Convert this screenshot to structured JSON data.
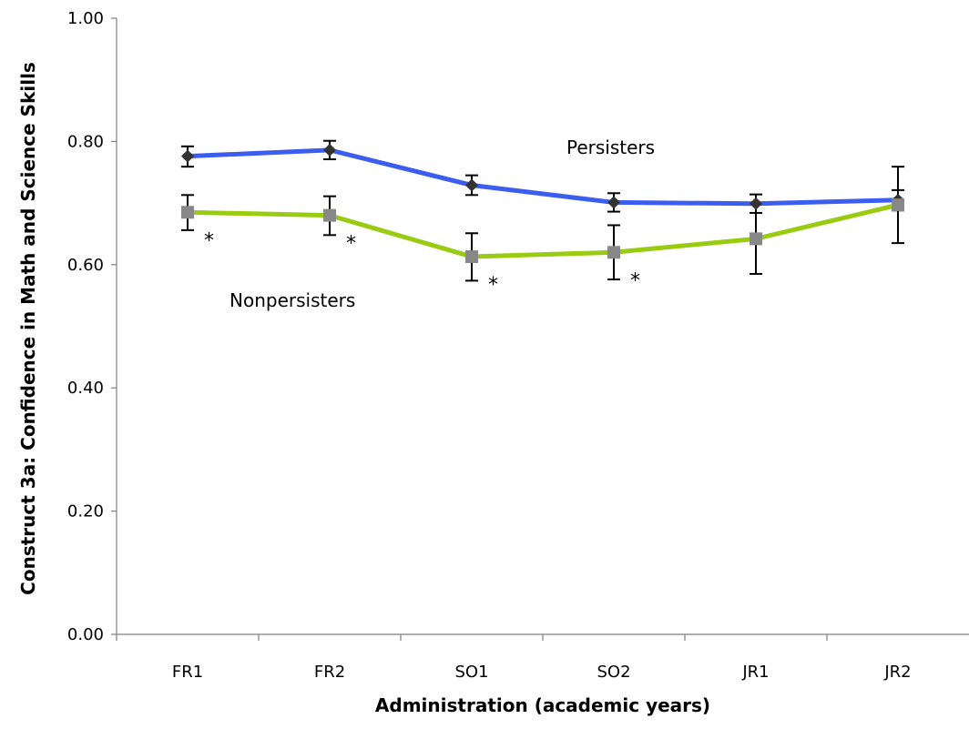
{
  "chart_data": {
    "type": "line",
    "title": "",
    "xlabel": "Administration (academic years)",
    "ylabel": "Construct 3a: Confidence in Math and Science Skills",
    "categories": [
      "FR1",
      "FR2",
      "SO1",
      "SO2",
      "JR1",
      "JR2"
    ],
    "ylim": [
      0,
      1
    ],
    "yticks": [
      "0.00",
      "0.20",
      "0.40",
      "0.60",
      "0.80",
      "1.00"
    ],
    "grid": false,
    "legend": "none",
    "series": [
      {
        "name": "Persisters",
        "color": "#3b5ef0",
        "marker_color": "#333333",
        "marker": "diamond",
        "values": [
          0.776,
          0.786,
          0.729,
          0.701,
          0.699,
          0.705
        ],
        "error_low": [
          0.759,
          0.771,
          0.713,
          0.686,
          0.684,
          0.688
        ],
        "error_high": [
          0.792,
          0.801,
          0.745,
          0.716,
          0.714,
          0.721
        ]
      },
      {
        "name": "Nonpersisters",
        "color": "#99cc11",
        "marker_color": "#888888",
        "marker": "square",
        "values": [
          0.685,
          0.68,
          0.613,
          0.62,
          0.642,
          0.697
        ],
        "error_low": [
          0.656,
          0.648,
          0.574,
          0.576,
          0.585,
          0.635
        ],
        "error_high": [
          0.713,
          0.711,
          0.651,
          0.664,
          0.699,
          0.759
        ]
      }
    ],
    "annotations": {
      "significance_symbol": "*",
      "significant_indices": [
        0,
        1,
        2,
        3
      ]
    }
  }
}
